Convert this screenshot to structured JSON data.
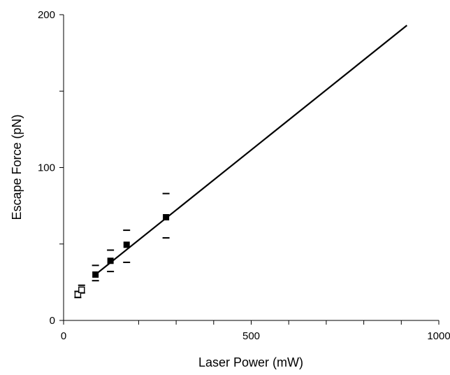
{
  "chart_data": {
    "type": "scatter",
    "xlabel": "Laser Power (mW)",
    "ylabel": "Escape Force (pN)",
    "xlim": [
      0,
      1000
    ],
    "ylim": [
      0,
      200
    ],
    "x_ticks": [
      {
        "value": 0,
        "label": "0"
      },
      {
        "value": 500,
        "label": "500"
      },
      {
        "value": 1000,
        "label": "1000"
      }
    ],
    "x_minor_ticks": [
      200,
      300,
      400,
      600,
      700,
      800,
      900
    ],
    "y_ticks": [
      {
        "value": 0,
        "label": "0"
      },
      {
        "value": 100,
        "label": "100"
      },
      {
        "value": 200,
        "label": "200"
      }
    ],
    "y_minor_ticks": [
      50,
      150
    ],
    "grid": false,
    "series": [
      {
        "marker": "filled-square",
        "points": [
          {
            "x": 85,
            "y": 30,
            "err_low": 26,
            "err_high": 36
          },
          {
            "x": 125,
            "y": 39,
            "err_low": 32,
            "err_high": 46
          },
          {
            "x": 168,
            "y": 49.5,
            "err_low": 38,
            "err_high": 59
          },
          {
            "x": 273,
            "y": 67.5,
            "err_low": 54,
            "err_high": 83
          }
        ]
      },
      {
        "marker": "open-square",
        "points": [
          {
            "x": 38,
            "y": 17,
            "err_low": 15,
            "err_high": 19
          },
          {
            "x": 48,
            "y": 20,
            "err_low": 18,
            "err_high": 23
          }
        ]
      }
    ],
    "fit_line": {
      "x": [
        85,
        915
      ],
      "y": [
        30,
        193
      ]
    }
  }
}
